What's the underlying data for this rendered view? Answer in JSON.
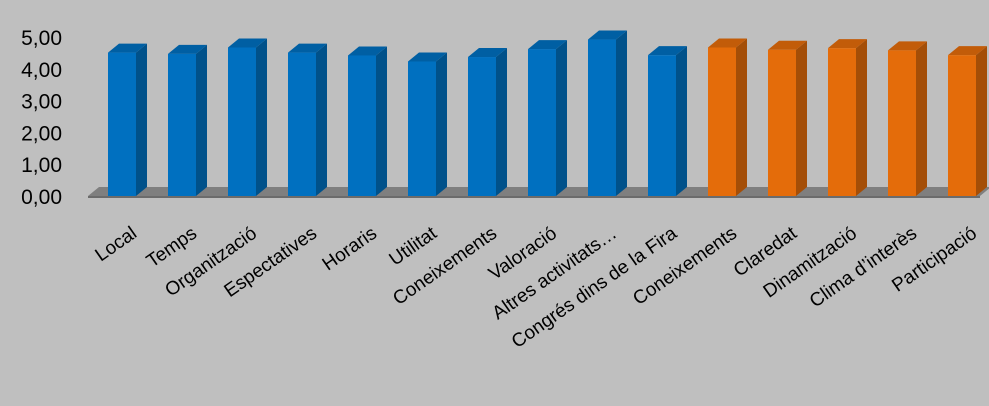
{
  "chart_data": {
    "type": "bar",
    "categories": [
      "Local",
      "Temps",
      "Organització",
      "Espectatives",
      "Horaris",
      "Utilitat",
      "Coneixements",
      "Valoració",
      "Altres activitats…",
      "Congrés dins de la Fira",
      "Coneixements",
      "Claredat",
      "Dinamització",
      "Clima d’interès",
      "Participació"
    ],
    "values": [
      4.51,
      4.47,
      4.67,
      4.51,
      4.42,
      4.23,
      4.37,
      4.62,
      4.92,
      4.43,
      4.67,
      4.6,
      4.65,
      4.58,
      4.43
    ],
    "bar_colors": [
      "#0070c0",
      "#0070c0",
      "#0070c0",
      "#0070c0",
      "#0070c0",
      "#0070c0",
      "#0070c0",
      "#0070c0",
      "#0070c0",
      "#0070c0",
      "#e46c0a",
      "#e46c0a",
      "#e46c0a",
      "#e46c0a",
      "#e46c0a"
    ],
    "yticks": [
      "0,00",
      "1,00",
      "2,00",
      "3,00",
      "4,00",
      "5,00"
    ],
    "ylim": [
      0,
      5
    ],
    "grid": false,
    "legend": "none",
    "title": "",
    "xlabel": "",
    "ylabel": ""
  },
  "colors": {
    "background": "#bfbfbf",
    "floor": "#7f7f7f",
    "blue": "#0070c0",
    "orange": "#e46c0a"
  }
}
